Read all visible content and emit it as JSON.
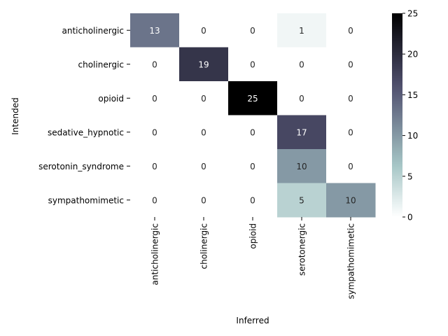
{
  "chart_data": {
    "type": "heatmap",
    "title": "",
    "xlabel": "Inferred",
    "ylabel": "Intended",
    "x_categories": [
      "anticholinergic",
      "cholinergic",
      "opioid",
      "serotonergic",
      "sympathomimetic"
    ],
    "y_categories": [
      "anticholinergic",
      "cholinergic",
      "opioid",
      "sedative_hypnotic",
      "serotonin_syndrome",
      "sympathomimetic"
    ],
    "values": [
      [
        13,
        0,
        0,
        1,
        0
      ],
      [
        0,
        19,
        0,
        0,
        0
      ],
      [
        0,
        0,
        25,
        0,
        0
      ],
      [
        0,
        0,
        0,
        17,
        0
      ],
      [
        0,
        0,
        0,
        10,
        0
      ],
      [
        0,
        0,
        0,
        5,
        10
      ]
    ],
    "colorbar": {
      "range": [
        0,
        25
      ],
      "ticks": [
        0,
        5,
        10,
        15,
        20,
        25
      ],
      "colormap": "bone_r"
    },
    "annotations": true,
    "grid": false
  }
}
